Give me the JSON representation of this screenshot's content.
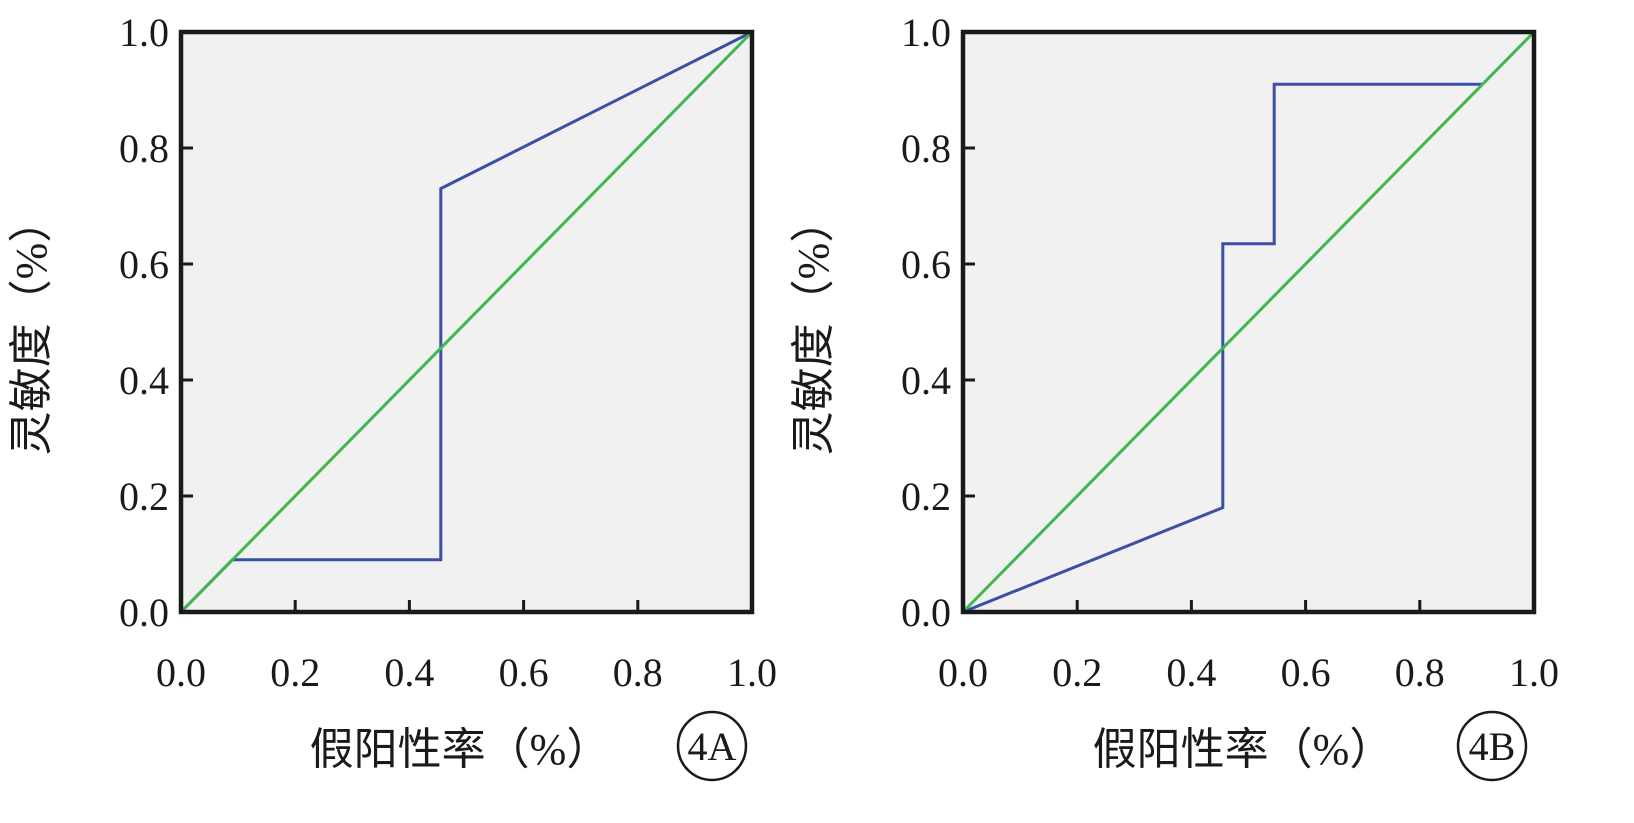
{
  "chart_data": [
    {
      "type": "line",
      "panel_label": "4A",
      "xlabel": "假阳性率（%）",
      "ylabel": "灵敏度（%）",
      "xlim": [
        0,
        1
      ],
      "ylim": [
        0,
        1
      ],
      "x_ticks": [
        "0.0",
        "0.2",
        "0.4",
        "0.6",
        "0.8",
        "1.0"
      ],
      "y_ticks": [
        "0.0",
        "0.2",
        "0.4",
        "0.6",
        "0.8",
        "1.0"
      ],
      "grid": false,
      "series": [
        {
          "color": "#3b4fa8",
          "points": [
            [
              0,
              0
            ],
            [
              0.09,
              0.09
            ],
            [
              0.455,
              0.09
            ],
            [
              0.455,
              0.73
            ],
            [
              1,
              1
            ]
          ]
        },
        {
          "color": "#3db84a",
          "points": [
            [
              0,
              0
            ],
            [
              1,
              1
            ]
          ]
        }
      ]
    },
    {
      "type": "line",
      "panel_label": "4B",
      "xlabel": "假阳性率（%）",
      "ylabel": "灵敏度（%）",
      "xlim": [
        0,
        1
      ],
      "ylim": [
        0,
        1
      ],
      "x_ticks": [
        "0.0",
        "0.2",
        "0.4",
        "0.6",
        "0.8",
        "1.0"
      ],
      "y_ticks": [
        "0.0",
        "0.2",
        "0.4",
        "0.6",
        "0.8",
        "1.0"
      ],
      "grid": false,
      "series": [
        {
          "color": "#3b4fa8",
          "points": [
            [
              0,
              0
            ],
            [
              0.455,
              0.18
            ],
            [
              0.455,
              0.635
            ],
            [
              0.545,
              0.635
            ],
            [
              0.545,
              0.91
            ],
            [
              0.91,
              0.91
            ]
          ]
        },
        {
          "color": "#3db84a",
          "points": [
            [
              0,
              0
            ],
            [
              1,
              1
            ]
          ]
        }
      ]
    }
  ],
  "colors": {
    "plot_background": "#f1f1f1",
    "frame": "#1a1a1a"
  }
}
